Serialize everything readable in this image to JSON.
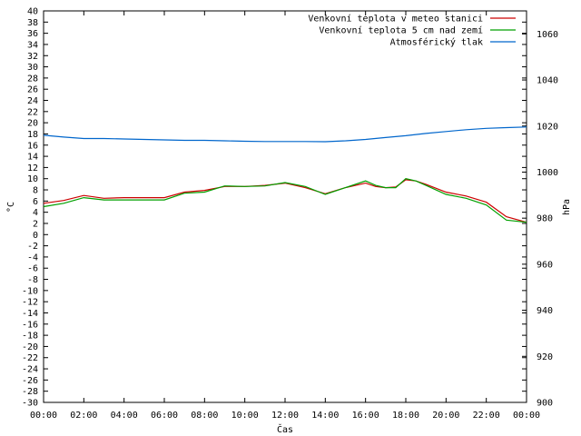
{
  "chart_data": {
    "type": "line",
    "xlabel": "Čas",
    "ylabel": "°C",
    "y2label": "hPa",
    "x_ticks": [
      "00:00",
      "02:00",
      "04:00",
      "06:00",
      "08:00",
      "10:00",
      "12:00",
      "14:00",
      "16:00",
      "18:00",
      "20:00",
      "22:00",
      "00:00"
    ],
    "ylim": [
      -30,
      40
    ],
    "y_ticks": [
      40,
      38,
      36,
      34,
      32,
      30,
      28,
      26,
      24,
      22,
      20,
      18,
      16,
      14,
      12,
      10,
      8,
      6,
      4,
      2,
      0,
      -2,
      -4,
      -6,
      -8,
      -10,
      -12,
      -14,
      -16,
      -18,
      -20,
      -22,
      -24,
      -26,
      -28,
      -30
    ],
    "y2lim": [
      900,
      1070
    ],
    "y2_ticks": [
      1060,
      1040,
      1020,
      1000,
      980,
      960,
      940,
      920,
      900
    ],
    "grid": false,
    "legend_position": "top-right",
    "series": [
      {
        "name": "Venkovní teplota v meteo stanici",
        "color": "#cc0000",
        "axis": "left",
        "x": [
          0,
          1,
          2,
          3,
          4,
          5,
          6,
          7,
          8,
          9,
          10,
          11,
          12,
          13,
          14,
          15,
          16,
          16.5,
          17,
          17.5,
          18,
          18.5,
          19,
          20,
          21,
          22,
          23,
          24
        ],
        "y": [
          5.6,
          6.1,
          7.0,
          6.5,
          6.6,
          6.6,
          6.6,
          7.6,
          7.9,
          8.6,
          8.6,
          8.8,
          9.2,
          8.4,
          7.3,
          8.4,
          9.2,
          8.6,
          8.4,
          8.5,
          9.8,
          9.6,
          9.0,
          7.6,
          6.9,
          5.8,
          3.2,
          2.2
        ]
      },
      {
        "name": "Venkovní teplota 5 cm nad zemí",
        "color": "#00a000",
        "axis": "left",
        "x": [
          0,
          1,
          2,
          3,
          4,
          5,
          6,
          7,
          8,
          9,
          10,
          11,
          12,
          13,
          14,
          15,
          16,
          16.5,
          17,
          17.5,
          18,
          18.5,
          19,
          20,
          21,
          22,
          23,
          24
        ],
        "y": [
          5.0,
          5.6,
          6.6,
          6.2,
          6.2,
          6.2,
          6.2,
          7.4,
          7.6,
          8.7,
          8.6,
          8.7,
          9.3,
          8.6,
          7.2,
          8.4,
          9.6,
          8.8,
          8.4,
          8.4,
          10.0,
          9.6,
          8.8,
          7.2,
          6.5,
          5.3,
          2.6,
          2.2
        ]
      },
      {
        "name": "Atmosférický tlak",
        "color": "#0066cc",
        "axis": "right",
        "x": [
          0,
          1,
          2,
          3,
          4,
          5,
          6,
          7,
          8,
          9,
          10,
          11,
          12,
          13,
          14,
          15,
          16,
          17,
          18,
          19,
          20,
          21,
          22,
          23,
          24
        ],
        "y": [
          1016.0,
          1015.2,
          1014.6,
          1014.6,
          1014.4,
          1014.2,
          1014.0,
          1013.8,
          1013.8,
          1013.6,
          1013.4,
          1013.3,
          1013.3,
          1013.3,
          1013.2,
          1013.6,
          1014.2,
          1015.0,
          1015.8,
          1016.8,
          1017.6,
          1018.4,
          1019.0,
          1019.3,
          1019.6
        ]
      }
    ]
  }
}
